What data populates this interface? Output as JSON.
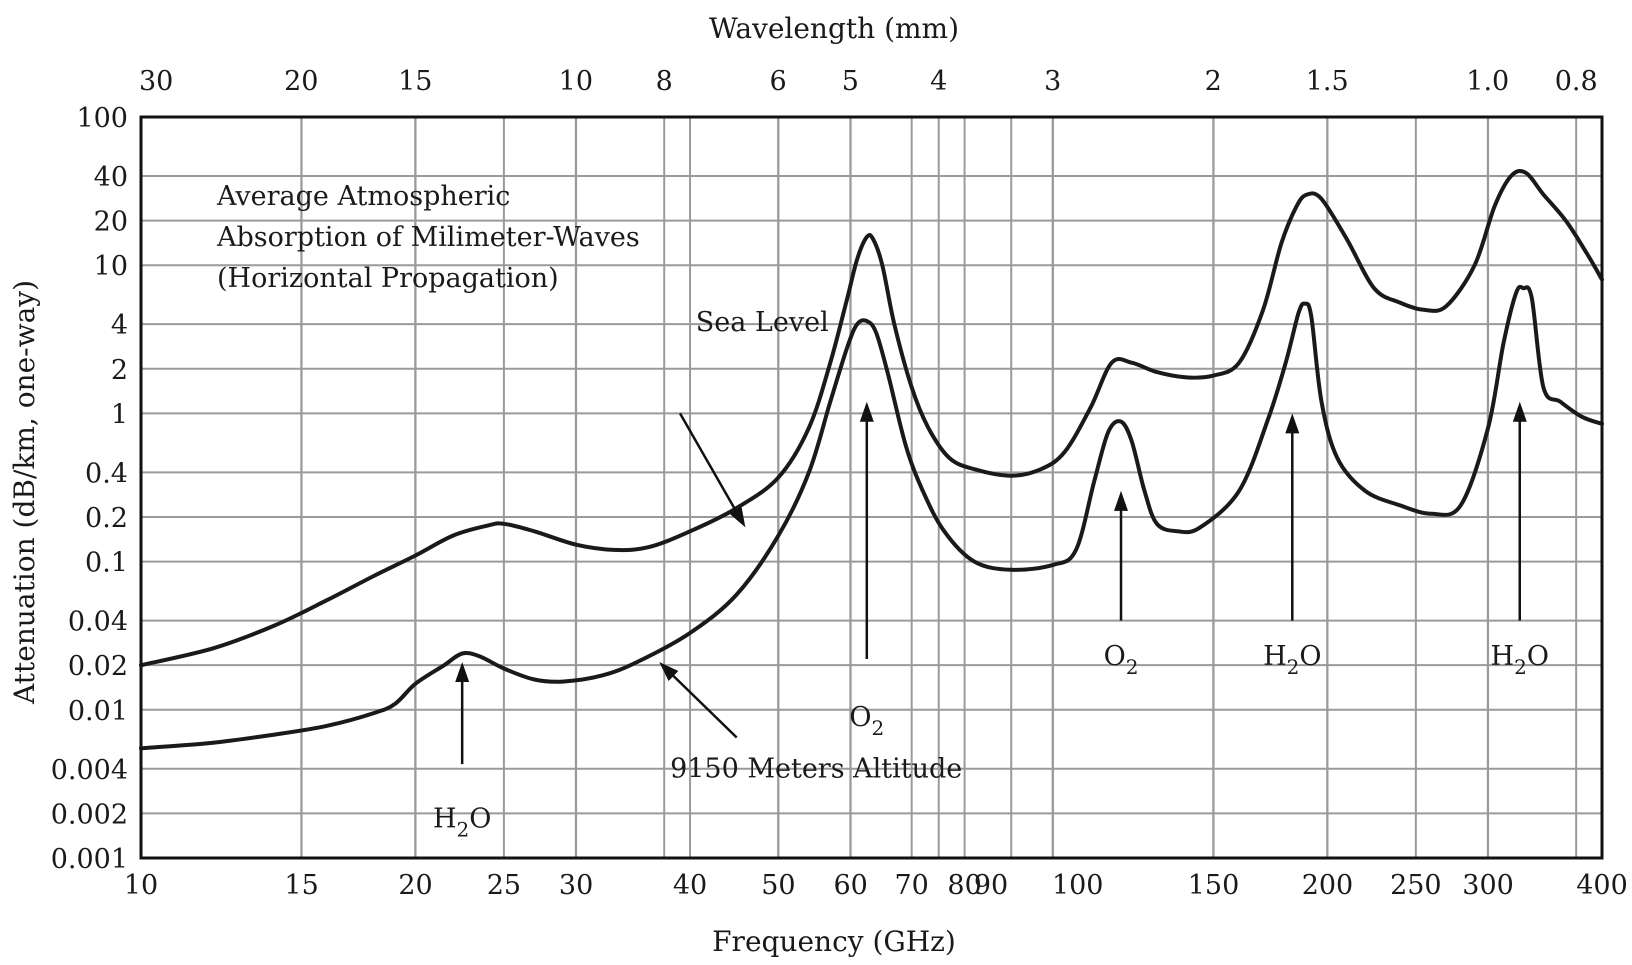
{
  "chart_data": {
    "type": "line",
    "title": [
      "Average Atmospheric",
      "Absorption of Milimeter-Waves",
      "(Horizontal Propagation)"
    ],
    "xlabel": "Frequency (GHz)",
    "ylabel": "Attenuation (dB/km, one-way)",
    "x2label": "Wavelength (mm)",
    "x_scale": "log",
    "y_scale": "log",
    "xlim": [
      10,
      400
    ],
    "ylim": [
      0.001,
      100
    ],
    "grid": true,
    "x_ticks": [
      {
        "value": 10,
        "label": "10"
      },
      {
        "value": 15,
        "label": "15"
      },
      {
        "value": 20,
        "label": "20"
      },
      {
        "value": 25,
        "label": "25"
      },
      {
        "value": 30,
        "label": "30"
      },
      {
        "value": 40,
        "label": "40"
      },
      {
        "value": 50,
        "label": "50"
      },
      {
        "value": 60,
        "label": "60"
      },
      {
        "value": 70,
        "label": "70"
      },
      {
        "value": 80,
        "label": "80"
      },
      {
        "value": 90,
        "label": "90"
      },
      {
        "value": 100,
        "label": "100"
      },
      {
        "value": 150,
        "label": "150"
      },
      {
        "value": 200,
        "label": "200"
      },
      {
        "value": 250,
        "label": "250"
      },
      {
        "value": 300,
        "label": "300"
      },
      {
        "value": 400,
        "label": "400"
      }
    ],
    "y_ticks": [
      {
        "value": 100,
        "label": "100"
      },
      {
        "value": 40,
        "label": "40"
      },
      {
        "value": 20,
        "label": "20"
      },
      {
        "value": 10,
        "label": "10"
      },
      {
        "value": 4,
        "label": "4"
      },
      {
        "value": 2,
        "label": "2"
      },
      {
        "value": 1,
        "label": "1"
      },
      {
        "value": 0.4,
        "label": "0.4"
      },
      {
        "value": 0.2,
        "label": "0.2"
      },
      {
        "value": 0.1,
        "label": "0.1"
      },
      {
        "value": 0.04,
        "label": "0.04"
      },
      {
        "value": 0.02,
        "label": "0.02"
      },
      {
        "value": 0.01,
        "label": "0.01"
      },
      {
        "value": 0.004,
        "label": "0.004"
      },
      {
        "value": 0.002,
        "label": "0.002"
      },
      {
        "value": 0.001,
        "label": "0.001"
      }
    ],
    "top_ticks": [
      {
        "value": 30,
        "label": "30"
      },
      {
        "value": 20,
        "label": "20"
      },
      {
        "value": 15,
        "label": "15"
      },
      {
        "value": 10,
        "label": "10"
      },
      {
        "value": 8,
        "label": "8"
      },
      {
        "value": 6,
        "label": "6"
      },
      {
        "value": 5,
        "label": "5"
      },
      {
        "value": 4,
        "label": "4"
      },
      {
        "value": 3,
        "label": "3"
      },
      {
        "value": 2,
        "label": "2"
      },
      {
        "value": 1.5,
        "label": "1.5"
      },
      {
        "value": 1.0,
        "label": "1.0"
      },
      {
        "value": 0.8,
        "label": "0.8"
      }
    ],
    "series": [
      {
        "name": "Sea Level",
        "points": [
          [
            10,
            0.02
          ],
          [
            12,
            0.026
          ],
          [
            14,
            0.037
          ],
          [
            16,
            0.055
          ],
          [
            18,
            0.08
          ],
          [
            20,
            0.11
          ],
          [
            22,
            0.15
          ],
          [
            24,
            0.175
          ],
          [
            25,
            0.18
          ],
          [
            27,
            0.16
          ],
          [
            30,
            0.13
          ],
          [
            33,
            0.12
          ],
          [
            36,
            0.125
          ],
          [
            40,
            0.16
          ],
          [
            45,
            0.23
          ],
          [
            50,
            0.37
          ],
          [
            54,
            0.8
          ],
          [
            57,
            2.2
          ],
          [
            59.5,
            6
          ],
          [
            61,
            11
          ],
          [
            62.5,
            15.5
          ],
          [
            63.5,
            15
          ],
          [
            65,
            10
          ],
          [
            67,
            4
          ],
          [
            70,
            1.5
          ],
          [
            73,
            0.8
          ],
          [
            77,
            0.5
          ],
          [
            82,
            0.42
          ],
          [
            90,
            0.38
          ],
          [
            97,
            0.42
          ],
          [
            103,
            0.55
          ],
          [
            110,
            1.1
          ],
          [
            116,
            2.2
          ],
          [
            122,
            2.2
          ],
          [
            130,
            1.9
          ],
          [
            140,
            1.75
          ],
          [
            150,
            1.8
          ],
          [
            160,
            2.2
          ],
          [
            170,
            5
          ],
          [
            178,
            14
          ],
          [
            185,
            25
          ],
          [
            190,
            30
          ],
          [
            197,
            28
          ],
          [
            210,
            15
          ],
          [
            225,
            7
          ],
          [
            240,
            5.6
          ],
          [
            255,
            5
          ],
          [
            270,
            5.3
          ],
          [
            290,
            10
          ],
          [
            305,
            25
          ],
          [
            318,
            40
          ],
          [
            330,
            42
          ],
          [
            345,
            30
          ],
          [
            365,
            20
          ],
          [
            385,
            12
          ],
          [
            400,
            8
          ]
        ]
      },
      {
        "name": "9150 Meters Altitude",
        "points": [
          [
            10,
            0.0055
          ],
          [
            12,
            0.006
          ],
          [
            14,
            0.0068
          ],
          [
            16,
            0.0078
          ],
          [
            18,
            0.0095
          ],
          [
            19,
            0.011
          ],
          [
            20,
            0.015
          ],
          [
            21.5,
            0.02
          ],
          [
            22.5,
            0.024
          ],
          [
            23.5,
            0.023
          ],
          [
            25,
            0.019
          ],
          [
            27,
            0.016
          ],
          [
            29,
            0.0155
          ],
          [
            32,
            0.017
          ],
          [
            35,
            0.021
          ],
          [
            40,
            0.033
          ],
          [
            45,
            0.06
          ],
          [
            50,
            0.15
          ],
          [
            54,
            0.4
          ],
          [
            57,
            1.2
          ],
          [
            59.5,
            2.8
          ],
          [
            61,
            4
          ],
          [
            62.5,
            4.2
          ],
          [
            64,
            3.5
          ],
          [
            66,
            1.8
          ],
          [
            69,
            0.6
          ],
          [
            72,
            0.3
          ],
          [
            76,
            0.16
          ],
          [
            82,
            0.1
          ],
          [
            90,
            0.088
          ],
          [
            100,
            0.095
          ],
          [
            106,
            0.12
          ],
          [
            111,
            0.35
          ],
          [
            115,
            0.75
          ],
          [
            118.75,
            0.88
          ],
          [
            122,
            0.65
          ],
          [
            126,
            0.3
          ],
          [
            130,
            0.18
          ],
          [
            137,
            0.16
          ],
          [
            145,
            0.17
          ],
          [
            160,
            0.3
          ],
          [
            172,
            0.9
          ],
          [
            180,
            2.2
          ],
          [
            186,
            4.8
          ],
          [
            189,
            5.5
          ],
          [
            192,
            4.5
          ],
          [
            197,
            1.2
          ],
          [
            205,
            0.5
          ],
          [
            220,
            0.3
          ],
          [
            240,
            0.24
          ],
          [
            260,
            0.21
          ],
          [
            280,
            0.24
          ],
          [
            300,
            0.8
          ],
          [
            312,
            3
          ],
          [
            322,
            6.5
          ],
          [
            328,
            7
          ],
          [
            335,
            6
          ],
          [
            345,
            1.5
          ],
          [
            360,
            1.2
          ],
          [
            380,
            0.95
          ],
          [
            400,
            0.85
          ]
        ]
      }
    ],
    "annotations": [
      {
        "text": "Sea Level",
        "x": 48,
        "y": 3.6,
        "arrow_tail": [
          39,
          1.0
        ],
        "arrow_head": [
          46,
          0.17
        ]
      },
      {
        "text": "9150 Meters Altitude",
        "x": 55,
        "y": 0.0035,
        "arrow_tail": [
          45,
          0.0065
        ],
        "arrow_head": [
          37,
          0.021
        ]
      },
      {
        "gas": "H",
        "sub": "2",
        "rest": "O",
        "x": 22.5,
        "y": 0.0016,
        "arrow_tail": [
          22.5,
          0.0043
        ],
        "arrow_head": [
          22.5,
          0.021
        ]
      },
      {
        "gas": "O",
        "sub": "2",
        "rest": "",
        "x": 62.5,
        "y": 0.0078,
        "arrow_tail": [
          62.5,
          0.022
        ],
        "arrow_head": [
          62.5,
          1.2
        ]
      },
      {
        "gas": "O",
        "sub": "2",
        "rest": "",
        "x": 118.75,
        "y": 0.02,
        "arrow_tail": [
          118.75,
          0.04
        ],
        "arrow_head": [
          118.75,
          0.3
        ]
      },
      {
        "gas": "H",
        "sub": "2",
        "rest": "O",
        "x": 183,
        "y": 0.02,
        "arrow_tail": [
          183,
          0.04
        ],
        "arrow_head": [
          183,
          1.0
        ]
      },
      {
        "gas": "H",
        "sub": "2",
        "rest": "O",
        "x": 325,
        "y": 0.02,
        "arrow_tail": [
          325,
          0.04
        ],
        "arrow_head": [
          325,
          1.2
        ]
      }
    ]
  }
}
